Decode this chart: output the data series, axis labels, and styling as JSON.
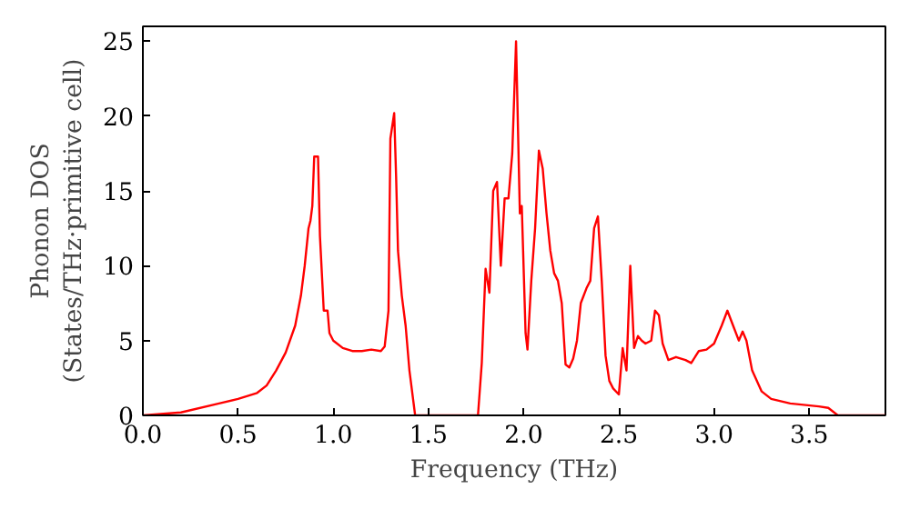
{
  "chart_data": {
    "type": "line",
    "xlabel": "Frequency (THz)",
    "ylabel": "Phonon DOS\n(States/THz·primitive cell)",
    "x": [
      0,
      0.2,
      0.4,
      0.5,
      0.6,
      0.65,
      0.7,
      0.75,
      0.8,
      0.83,
      0.85,
      0.87,
      0.88,
      0.89,
      0.9,
      0.92,
      0.93,
      0.94,
      0.95,
      0.97,
      0.98,
      1.0,
      1.05,
      1.1,
      1.15,
      1.2,
      1.25,
      1.27,
      1.29,
      1.3,
      1.32,
      1.33,
      1.34,
      1.36,
      1.38,
      1.4,
      1.43,
      1.76,
      1.78,
      1.8,
      1.82,
      1.84,
      1.86,
      1.88,
      1.9,
      1.92,
      1.94,
      1.96,
      1.98,
      1.99,
      2.01,
      2.02,
      2.04,
      2.06,
      2.08,
      2.1,
      2.12,
      2.14,
      2.16,
      2.18,
      2.2,
      2.22,
      2.24,
      2.26,
      2.28,
      2.3,
      2.33,
      2.35,
      2.37,
      2.39,
      2.41,
      2.43,
      2.45,
      2.47,
      2.5,
      2.52,
      2.54,
      2.56,
      2.58,
      2.6,
      2.62,
      2.64,
      2.67,
      2.69,
      2.71,
      2.73,
      2.76,
      2.8,
      2.85,
      2.88,
      2.92,
      2.96,
      3.0,
      3.04,
      3.07,
      3.1,
      3.13,
      3.15,
      3.17,
      3.2,
      3.25,
      3.3,
      3.4,
      3.55,
      3.6,
      3.65,
      3.9
    ],
    "series": [
      {
        "color": "#ff0000",
        "values": [
          0,
          0.2,
          0.8,
          1.1,
          1.5,
          2.0,
          3,
          4.2,
          6,
          8,
          10,
          12.5,
          13,
          14,
          17.3,
          17.3,
          12,
          9.5,
          7,
          7,
          5.5,
          5,
          4.5,
          4.3,
          4.3,
          4.4,
          4.3,
          4.6,
          7,
          18.5,
          20.2,
          16,
          11,
          8,
          6,
          3,
          0,
          0,
          3.5,
          9.8,
          8.2,
          15,
          15.6,
          10,
          14.5,
          14.5,
          17.5,
          25,
          13.5,
          14,
          5.5,
          4.4,
          9,
          12.5,
          17.7,
          16.5,
          13.5,
          11,
          9.5,
          9,
          7.5,
          3.4,
          3.2,
          3.8,
          5,
          7.5,
          8.5,
          9,
          12.5,
          13.3,
          9,
          4,
          2.3,
          1.8,
          1.4,
          4.5,
          3,
          10,
          4.5,
          5.3,
          5,
          4.8,
          5,
          7,
          6.7,
          4.8,
          3.7,
          3.9,
          3.7,
          3.5,
          4.3,
          4.4,
          4.8,
          6,
          7,
          6,
          5,
          5.6,
          5,
          3,
          1.6,
          1.1,
          0.8,
          0.6,
          0.5,
          0,
          0
        ]
      }
    ],
    "xlim": [
      0,
      3.9
    ],
    "xticks": [
      {
        "value": 0,
        "label": "0.0"
      },
      {
        "value": 0.5,
        "label": "0.5"
      },
      {
        "value": 1,
        "label": "1.0"
      },
      {
        "value": 1.5,
        "label": "1.5"
      },
      {
        "value": 2,
        "label": "2.0"
      },
      {
        "value": 2.5,
        "label": "2.5"
      },
      {
        "value": 3,
        "label": "3.0"
      },
      {
        "value": 3.5,
        "label": "3.5"
      }
    ],
    "ylim": [
      0,
      26
    ],
    "yticks": [
      0,
      5,
      10,
      15,
      20,
      25
    ],
    "grid": false,
    "line_style": "solid"
  }
}
